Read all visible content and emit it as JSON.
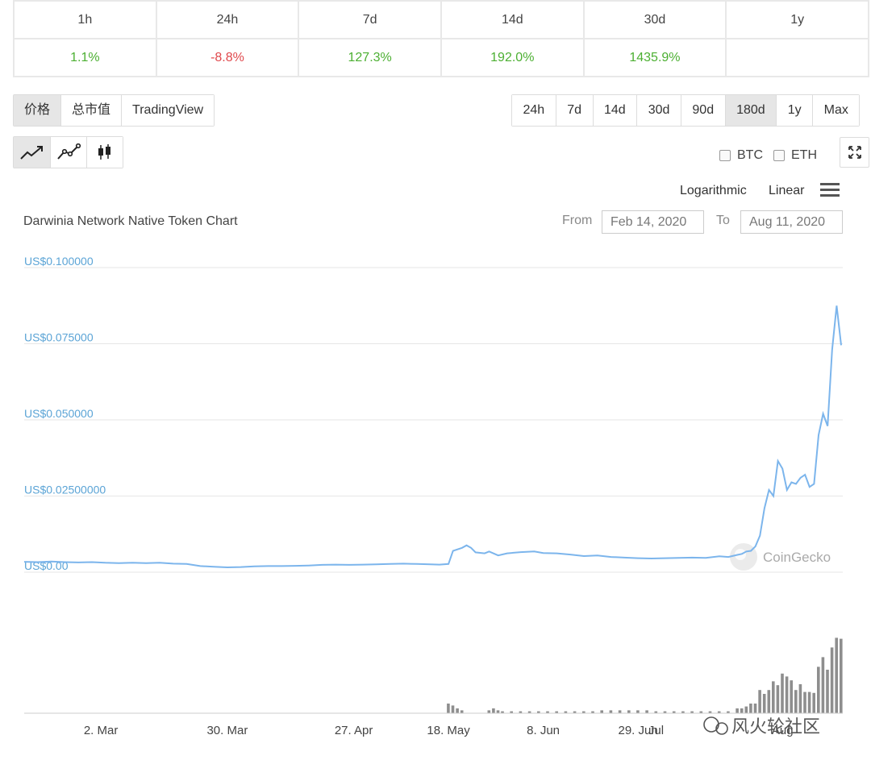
{
  "performance": {
    "headers": [
      "1h",
      "24h",
      "7d",
      "14d",
      "30d",
      "1y"
    ],
    "values": [
      "1.1%",
      "-8.8%",
      "127.3%",
      "192.0%",
      "1435.9%",
      ""
    ]
  },
  "view_tabs": [
    "价格",
    "总市值",
    "TradingView"
  ],
  "range_tabs": [
    "24h",
    "7d",
    "14d",
    "30d",
    "90d",
    "180d",
    "1y",
    "Max"
  ],
  "active_range": "180d",
  "chart_type_icons": [
    "line-chart-icon",
    "line-marker-chart-icon",
    "candlestick-icon"
  ],
  "compare": {
    "btc": "BTC",
    "eth": "ETH"
  },
  "scale": {
    "log": "Logarithmic",
    "linear": "Linear"
  },
  "menu_icon": "hamburger-menu-icon",
  "fullscreen_icon": "fullscreen-icon",
  "date_range": {
    "from_label": "From",
    "from": "Feb 14, 2020",
    "to_label": "To",
    "to": "Aug 11, 2020"
  },
  "watermark": "CoinGecko",
  "wechat_mark": "风火轮社区",
  "colors": {
    "line": "#7cb5ec",
    "volume": "#8e8e8e",
    "positive": "#4caf32",
    "negative": "#e0484c",
    "axis_label": "#5ba4d6"
  },
  "chart_data": {
    "type": "line",
    "title": "Darwinia Network Native Token Chart",
    "y_ticks": [
      "US$0.00",
      "US$0.02500000",
      "US$0.050000",
      "US$0.075000",
      "US$0.100000"
    ],
    "ylim": [
      0,
      0.1
    ],
    "x_ticks": [
      "2. Mar",
      "30. Mar",
      "27. Apr",
      "18. May",
      "8. Jun",
      "29. Jun",
      "Jul",
      "Aug"
    ],
    "x_tick_days": [
      17,
      45,
      73,
      94,
      115,
      136,
      140,
      168
    ],
    "x_range_days": [
      0,
      179
    ],
    "series": [
      {
        "points": [
          [
            0,
            0.0034
          ],
          [
            3,
            0.0033
          ],
          [
            6,
            0.0035
          ],
          [
            9,
            0.0033
          ],
          [
            12,
            0.0032
          ],
          [
            15,
            0.0033
          ],
          [
            18,
            0.0031
          ],
          [
            21,
            0.003
          ],
          [
            24,
            0.0031
          ],
          [
            27,
            0.003
          ],
          [
            30,
            0.0031
          ],
          [
            33,
            0.0028
          ],
          [
            36,
            0.0027
          ],
          [
            39,
            0.002
          ],
          [
            42,
            0.0018
          ],
          [
            45,
            0.0016
          ],
          [
            48,
            0.0017
          ],
          [
            51,
            0.0019
          ],
          [
            54,
            0.002
          ],
          [
            57,
            0.002
          ],
          [
            60,
            0.0021
          ],
          [
            63,
            0.0022
          ],
          [
            66,
            0.0024
          ],
          [
            69,
            0.0025
          ],
          [
            72,
            0.0024
          ],
          [
            75,
            0.0025
          ],
          [
            78,
            0.0026
          ],
          [
            81,
            0.0027
          ],
          [
            84,
            0.0028
          ],
          [
            87,
            0.0027
          ],
          [
            90,
            0.0026
          ],
          [
            92,
            0.0025
          ],
          [
            94,
            0.0027
          ],
          [
            95,
            0.007
          ],
          [
            97,
            0.008
          ],
          [
            98,
            0.0088
          ],
          [
            99,
            0.008
          ],
          [
            100,
            0.0065
          ],
          [
            102,
            0.0062
          ],
          [
            103,
            0.0068
          ],
          [
            105,
            0.0055
          ],
          [
            107,
            0.0062
          ],
          [
            110,
            0.0066
          ],
          [
            113,
            0.0068
          ],
          [
            115,
            0.0063
          ],
          [
            118,
            0.0062
          ],
          [
            121,
            0.0058
          ],
          [
            124,
            0.0053
          ],
          [
            127,
            0.0055
          ],
          [
            130,
            0.005
          ],
          [
            133,
            0.0048
          ],
          [
            136,
            0.0046
          ],
          [
            139,
            0.0045
          ],
          [
            142,
            0.0046
          ],
          [
            145,
            0.0047
          ],
          [
            148,
            0.0048
          ],
          [
            151,
            0.0047
          ],
          [
            154,
            0.0052
          ],
          [
            156,
            0.005
          ],
          [
            158,
            0.0057
          ],
          [
            159,
            0.006
          ],
          [
            160,
            0.0068
          ],
          [
            161,
            0.007
          ],
          [
            162,
            0.0085
          ],
          [
            163,
            0.012
          ],
          [
            164,
            0.021
          ],
          [
            165,
            0.027
          ],
          [
            166,
            0.025
          ],
          [
            167,
            0.0365
          ],
          [
            168,
            0.034
          ],
          [
            169,
            0.027
          ],
          [
            170,
            0.0295
          ],
          [
            171,
            0.029
          ],
          [
            172,
            0.031
          ],
          [
            173,
            0.032
          ],
          [
            174,
            0.028
          ],
          [
            175,
            0.029
          ],
          [
            176,
            0.045
          ],
          [
            177,
            0.052
          ],
          [
            178,
            0.048
          ],
          [
            179,
            0.073
          ],
          [
            180,
            0.0875
          ],
          [
            181,
            0.0745
          ]
        ]
      },
      {
        "type": "bar",
        "volume_relative": [
          [
            94,
            0.1
          ],
          [
            95,
            0.08
          ],
          [
            96,
            0.05
          ],
          [
            97,
            0.03
          ],
          [
            103,
            0.03
          ],
          [
            104,
            0.05
          ],
          [
            105,
            0.03
          ],
          [
            106,
            0.02
          ],
          [
            108,
            0.02
          ],
          [
            110,
            0.02
          ],
          [
            112,
            0.02
          ],
          [
            114,
            0.02
          ],
          [
            116,
            0.02
          ],
          [
            118,
            0.02
          ],
          [
            120,
            0.02
          ],
          [
            122,
            0.02
          ],
          [
            124,
            0.02
          ],
          [
            126,
            0.02
          ],
          [
            128,
            0.03
          ],
          [
            130,
            0.03
          ],
          [
            132,
            0.03
          ],
          [
            134,
            0.03
          ],
          [
            136,
            0.03
          ],
          [
            138,
            0.03
          ],
          [
            140,
            0.02
          ],
          [
            142,
            0.02
          ],
          [
            144,
            0.02
          ],
          [
            146,
            0.02
          ],
          [
            148,
            0.02
          ],
          [
            150,
            0.02
          ],
          [
            152,
            0.02
          ],
          [
            154,
            0.02
          ],
          [
            156,
            0.02
          ],
          [
            158,
            0.05
          ],
          [
            159,
            0.05
          ],
          [
            160,
            0.07
          ],
          [
            161,
            0.1
          ],
          [
            162,
            0.1
          ],
          [
            163,
            0.24
          ],
          [
            164,
            0.2
          ],
          [
            165,
            0.24
          ],
          [
            166,
            0.33
          ],
          [
            167,
            0.29
          ],
          [
            168,
            0.41
          ],
          [
            169,
            0.38
          ],
          [
            170,
            0.34
          ],
          [
            171,
            0.24
          ],
          [
            172,
            0.3
          ],
          [
            173,
            0.22
          ],
          [
            174,
            0.22
          ],
          [
            175,
            0.21
          ],
          [
            176,
            0.48
          ],
          [
            177,
            0.58
          ],
          [
            178,
            0.45
          ],
          [
            179,
            0.68
          ],
          [
            180,
            0.78
          ],
          [
            181,
            0.77
          ]
        ]
      }
    ]
  }
}
